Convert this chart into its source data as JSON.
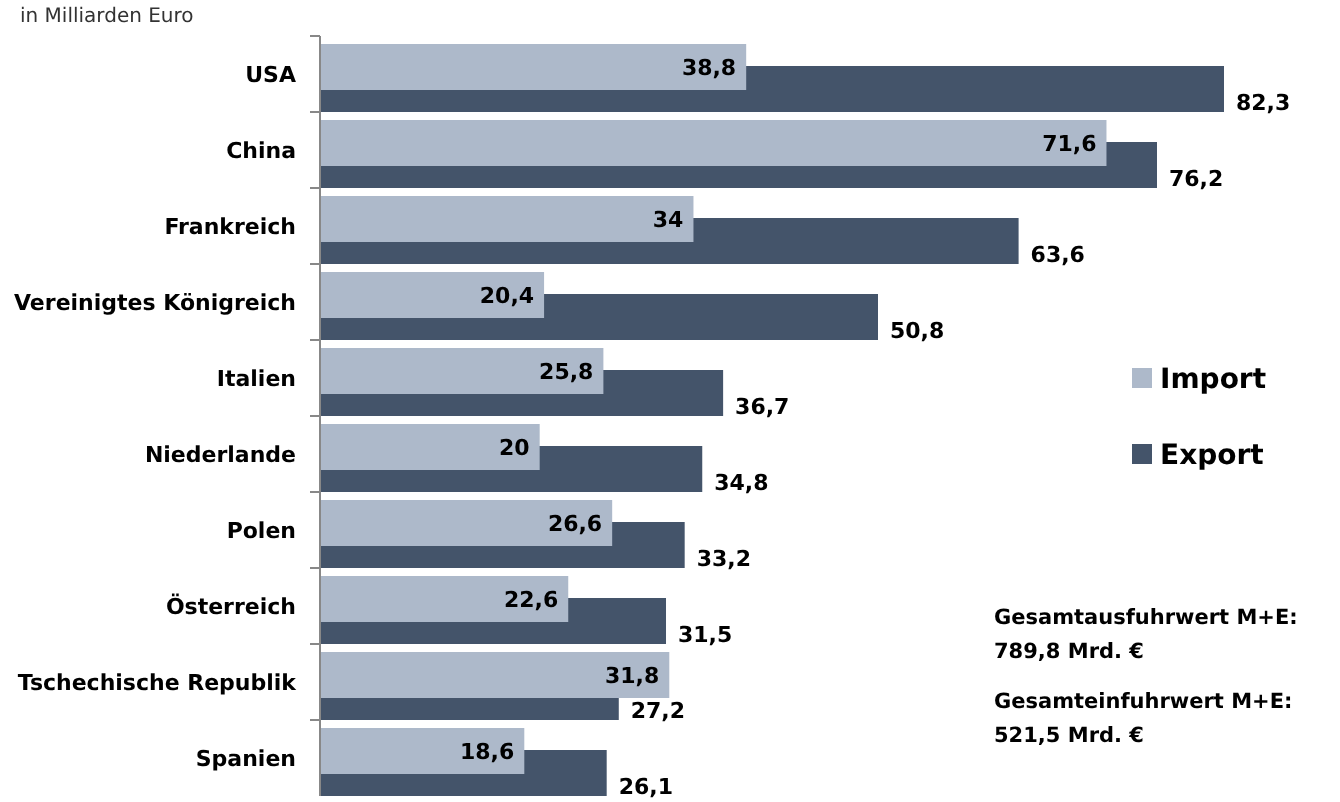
{
  "chart_data": {
    "type": "bar",
    "orientation": "horizontal",
    "subtitle": "in Milliarden Euro",
    "categories": [
      "USA",
      "China",
      "Frankreich",
      "Vereinigtes Königreich",
      "Italien",
      "Niederlande",
      "Polen",
      "Österreich",
      "Tschechische Republik",
      "Spanien"
    ],
    "series": [
      {
        "name": "Import",
        "color": "#adb9ca",
        "values": [
          38.8,
          71.6,
          34,
          20.4,
          25.8,
          20,
          26.6,
          22.6,
          31.8,
          18.6
        ],
        "value_labels": [
          "38,8",
          "71,6",
          "34",
          "20,4",
          "25,8",
          "20",
          "26,6",
          "22,6",
          "31,8",
          "18,6"
        ]
      },
      {
        "name": "Export",
        "color": "#44546a",
        "values": [
          82.3,
          76.2,
          63.6,
          50.8,
          36.7,
          34.8,
          33.2,
          31.5,
          27.2,
          26.1
        ],
        "value_labels": [
          "82,3",
          "76,2",
          "63,6",
          "50,8",
          "36,7",
          "34,8",
          "33,2",
          "31,5",
          "27,2",
          "26,1"
        ]
      }
    ],
    "legend": "right",
    "annotations": [
      "Gesamtausfuhrwert M+E:\n789,8 Mrd. €",
      "Gesamteinfuhrwert M+E:\n521,5 Mrd. €"
    ]
  }
}
